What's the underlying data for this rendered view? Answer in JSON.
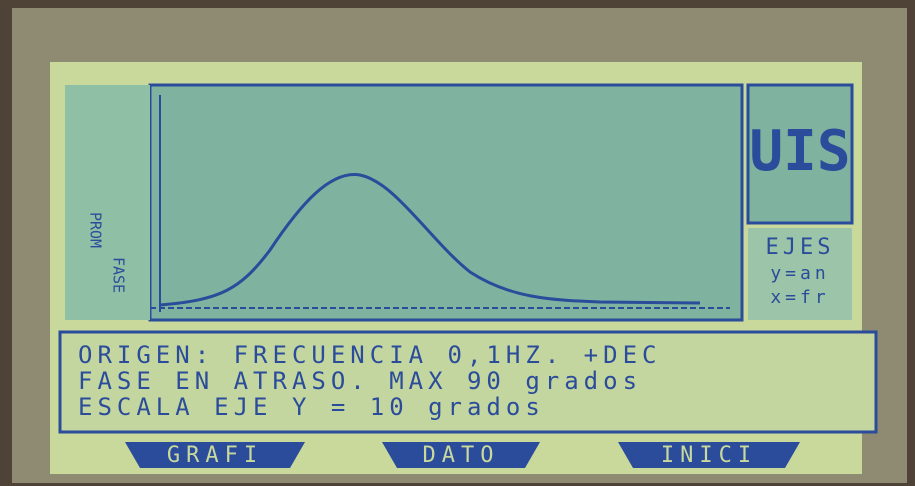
{
  "plot": {
    "y_labels": [
      "PROM",
      "FASE"
    ]
  },
  "logo": "UIS",
  "axes_panel": {
    "title": "EJES",
    "lines": [
      "y=an",
      "x=fr"
    ]
  },
  "message": {
    "lines": [
      "ORIGEN: FRECUENCIA 0,1HZ. +DEC",
      "FASE EN ATRASO. MAX 90 grados",
      "ESCALA EJE Y = 10 grados"
    ]
  },
  "buttons": [
    "GRAFI",
    "DATO",
    "INICI"
  ]
}
